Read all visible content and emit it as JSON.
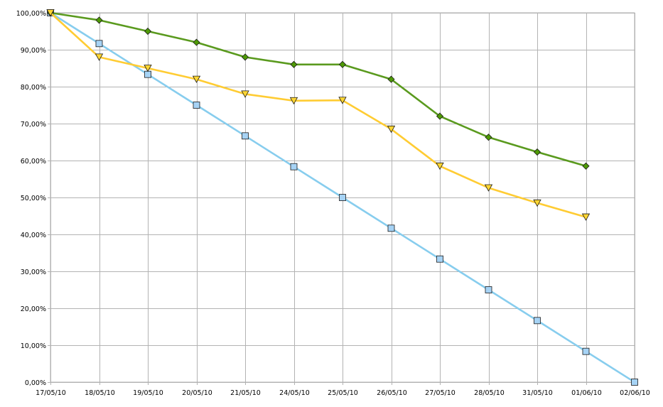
{
  "chart_data": {
    "type": "line",
    "title": "",
    "xlabel": "",
    "ylabel": "",
    "categories": [
      "17/05/10",
      "18/05/10",
      "19/05/10",
      "20/05/10",
      "21/05/10",
      "24/05/10",
      "25/05/10",
      "26/05/10",
      "27/05/10",
      "28/05/10",
      "31/05/10",
      "01/06/10",
      "02/06/10"
    ],
    "ylim": [
      0,
      100
    ],
    "yticks": [
      0,
      10,
      20,
      30,
      40,
      50,
      60,
      70,
      80,
      90,
      100
    ],
    "ytick_labels": [
      "0,00%",
      "10,00%",
      "20,00%",
      "30,00%",
      "40,00%",
      "50,00%",
      "60,00%",
      "70,00%",
      "80,00%",
      "90,00%",
      "100,00%"
    ],
    "grid": true,
    "legend": "none",
    "series": [
      {
        "color": "#87cdee",
        "marker": "square",
        "marker_fill": "#a6d3f5",
        "values": [
          100,
          91.67,
          83.33,
          75,
          66.67,
          58.33,
          50,
          41.67,
          33.33,
          25,
          16.67,
          8.33,
          0
        ]
      },
      {
        "color": "#5a9a1e",
        "marker": "diamond",
        "marker_fill": "#4e9a06",
        "values": [
          100,
          98,
          95,
          92,
          88,
          86,
          86,
          82,
          72,
          66.3,
          62.3,
          58.5,
          null
        ]
      },
      {
        "color": "#ffcc33",
        "marker": "triangle-down",
        "marker_fill": "#ffd633",
        "values": [
          100,
          88,
          85,
          82,
          78,
          76.2,
          76.3,
          68.5,
          58.5,
          52.6,
          48.5,
          44.7,
          null
        ]
      }
    ]
  }
}
